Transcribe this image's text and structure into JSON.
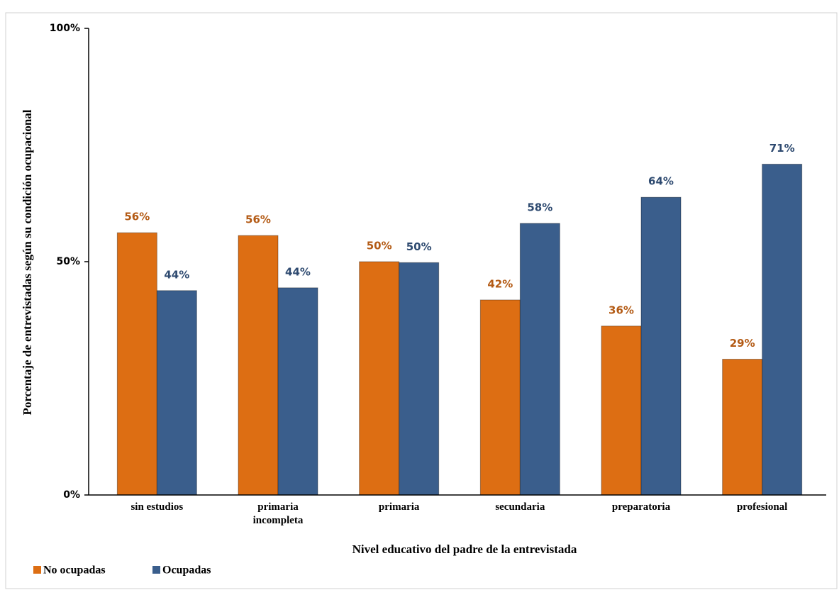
{
  "chart_data": {
    "type": "bar",
    "y_label": "Porcentaje de entrevistadas según su condición ocupacional",
    "x_label": "Nivel educativo del padre de la entrevistada",
    "categories": [
      "sin estudios",
      "primaria incompleta",
      "primaria",
      "secundaria",
      "preparatoria",
      "profesional"
    ],
    "series": [
      {
        "name": "No ocupadas",
        "color": "#dd6e13",
        "label_color": "#b35a14",
        "values": [
          56.2,
          55.6,
          50,
          41.8,
          36.2,
          29.1
        ],
        "value_labels": [
          "56%",
          "56%",
          "50%",
          "42%",
          "36%",
          "29%"
        ]
      },
      {
        "name": "Ocupadas",
        "color": "#3a5e8c",
        "label_color": "#2e4a70",
        "values": [
          43.8,
          44.4,
          49.8,
          58.2,
          63.8,
          70.9
        ],
        "value_labels": [
          "44%",
          "44%",
          "50%",
          "58%",
          "64%",
          "71%"
        ]
      }
    ],
    "ylim": [
      0,
      100
    ],
    "yticks": [
      {
        "value": 0,
        "label": "0%"
      },
      {
        "value": 50,
        "label": "50%"
      },
      {
        "value": 100,
        "label": "100%"
      }
    ],
    "grid": false
  }
}
